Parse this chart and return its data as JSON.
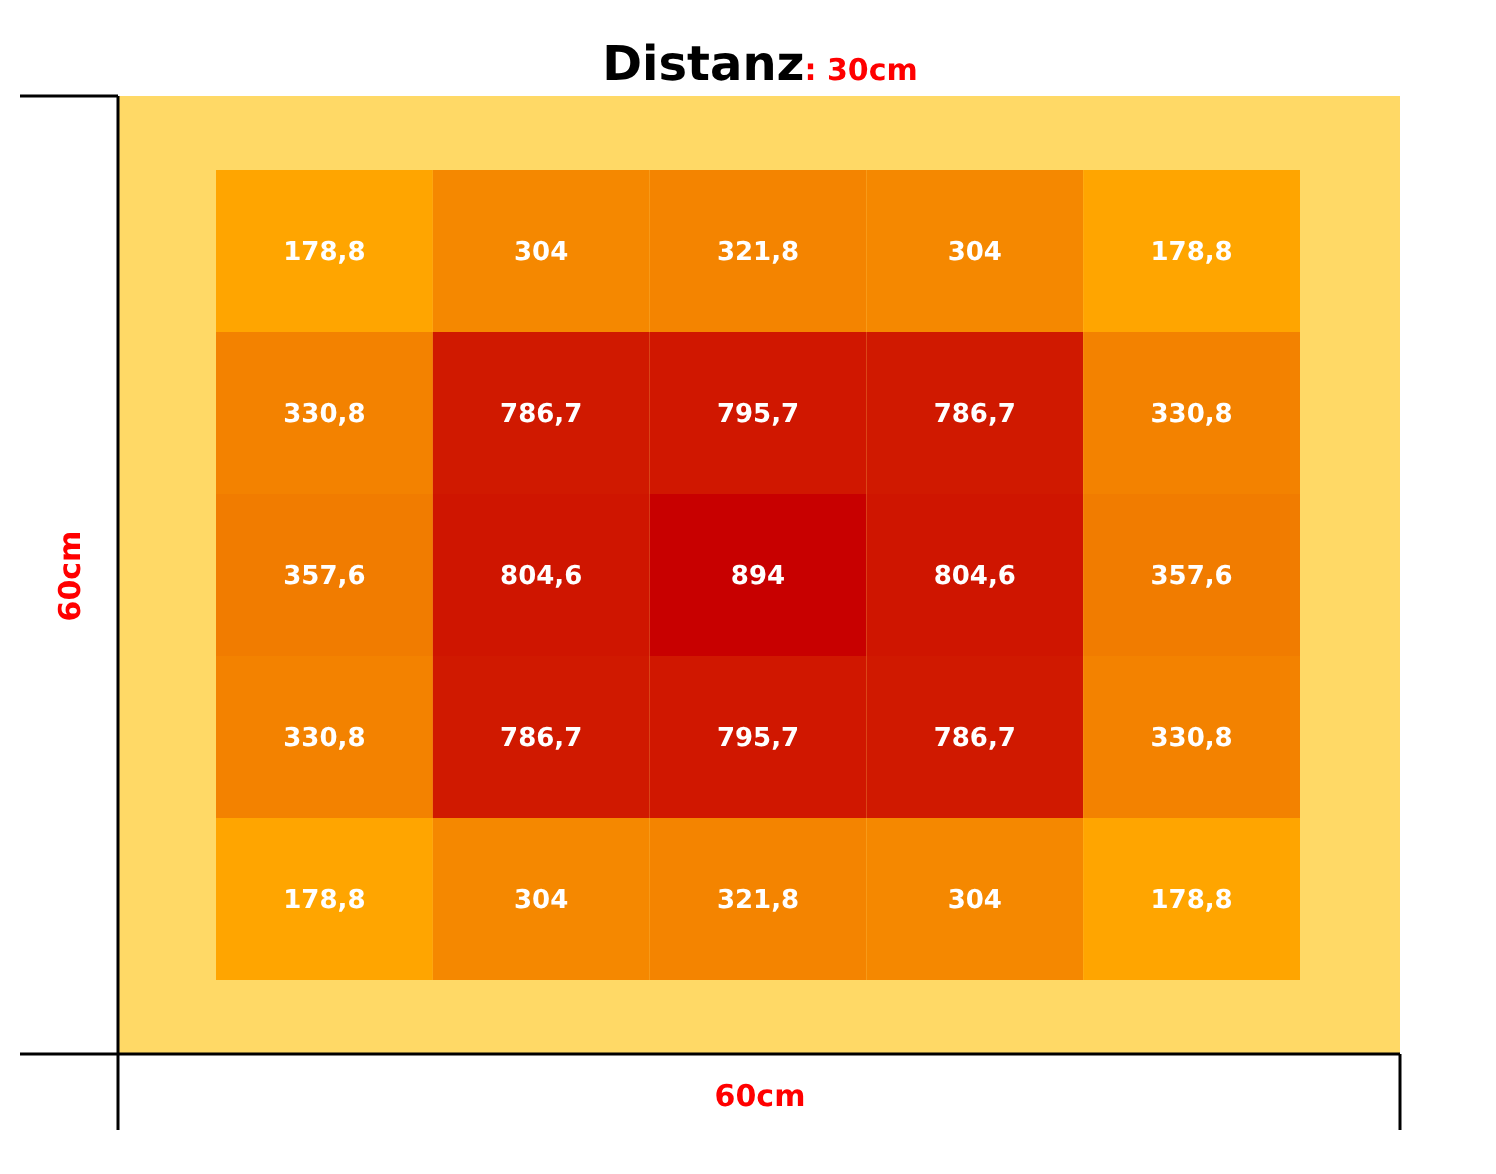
{
  "chart_data": {
    "type": "heatmap",
    "title": "Distanz: 30cm",
    "xlabel": "60cm",
    "ylabel": "60cm",
    "categories": [
      null,
      null,
      null,
      null,
      null
    ],
    "y_categories": [
      null,
      null,
      null,
      null,
      null
    ],
    "cells": [
      [
        178.8,
        304,
        321.8,
        304,
        178.8
      ],
      [
        330.8,
        786.7,
        795.7,
        786.7,
        330.8
      ],
      [
        357.6,
        804.6,
        894,
        804.6,
        357.6
      ],
      [
        330.8,
        786.7,
        795.7,
        786.7,
        330.8
      ],
      [
        178.8,
        304,
        321.8,
        304,
        178.8
      ]
    ],
    "cell_labels": [
      [
        "178,8",
        "304",
        "321,8",
        "304",
        "178,8"
      ],
      [
        "330,8",
        "786,7",
        "795,7",
        "786,7",
        "330,8"
      ],
      [
        "357,6",
        "804,6",
        "894",
        "804,6",
        "357,6"
      ],
      [
        "330,8",
        "786,7",
        "795,7",
        "786,7",
        "330,8"
      ],
      [
        "178,8",
        "304",
        "321,8",
        "304",
        "178,8"
      ]
    ],
    "tick_labels": false
  }
}
